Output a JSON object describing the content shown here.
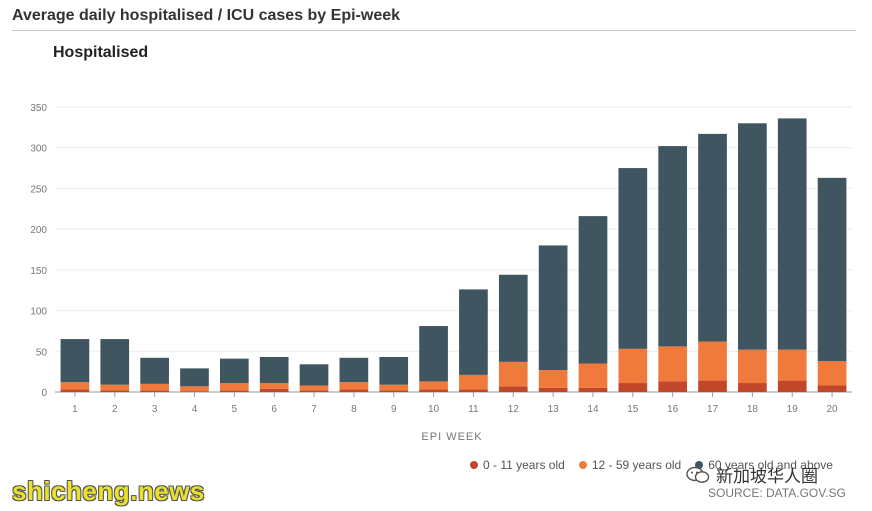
{
  "page": {
    "title": "Average daily hospitalised / ICU cases by Epi-week",
    "source": "SOURCE: DATA.GOV.SG",
    "watermark": "shicheng.news",
    "brand_label": "新加坡华人圈"
  },
  "chart_data": {
    "type": "bar",
    "stacked": true,
    "title": "Hospitalised",
    "xlabel": "EPI WEEK",
    "ylabel": "",
    "ylim": [
      0,
      350
    ],
    "yticks": [
      0,
      50,
      100,
      150,
      200,
      250,
      300,
      350
    ],
    "grid": true,
    "legend_position": "bottom-right",
    "categories": [
      "1",
      "2",
      "3",
      "4",
      "5",
      "6",
      "7",
      "8",
      "9",
      "10",
      "11",
      "12",
      "13",
      "14",
      "15",
      "16",
      "17",
      "18",
      "19",
      "20"
    ],
    "series": [
      {
        "name": "0 - 11 years old",
        "color": "#c0472a",
        "values": [
          3,
          2,
          2,
          1,
          2,
          4,
          2,
          3,
          2,
          3,
          3,
          7,
          5,
          5,
          11,
          13,
          14,
          11,
          14,
          8
        ]
      },
      {
        "name": "12 - 59 years old",
        "color": "#f07a3c",
        "values": [
          9,
          7,
          8,
          6,
          9,
          7,
          6,
          9,
          7,
          10,
          18,
          30,
          22,
          30,
          42,
          43,
          48,
          41,
          38,
          30
        ]
      },
      {
        "name": "60 years old and above",
        "color": "#3f5560",
        "values": [
          53,
          56,
          32,
          22,
          30,
          32,
          26,
          30,
          34,
          68,
          105,
          107,
          153,
          181,
          222,
          246,
          255,
          278,
          284,
          225
        ]
      }
    ]
  }
}
